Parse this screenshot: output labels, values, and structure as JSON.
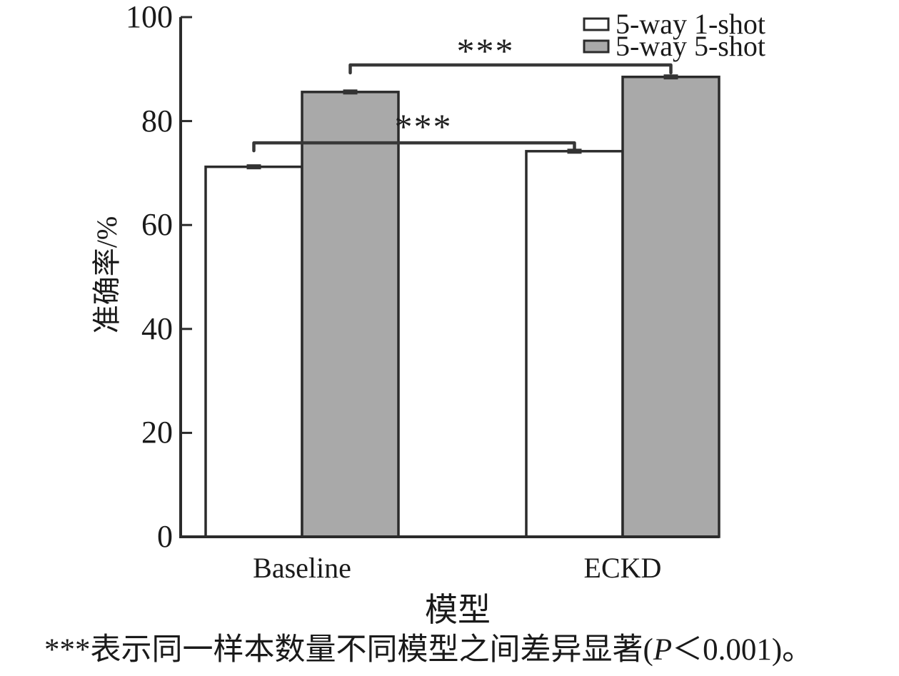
{
  "figure": {
    "background": "#ffffff",
    "text_color": "#1a1a1a"
  },
  "chart_data": {
    "type": "bar",
    "title": "",
    "xlabel": "模型",
    "ylabel": "准确率/%",
    "categories": [
      "Baseline",
      "ECKD"
    ],
    "series": [
      {
        "name": "5-way 1-shot",
        "values": [
          71.2,
          74.2
        ],
        "fill": "#ffffff",
        "edge": "#2b2b2b"
      },
      {
        "name": "5-way 5-shot",
        "values": [
          85.6,
          88.5
        ],
        "fill": "#a9a9a9",
        "edge": "#2b2b2b"
      }
    ],
    "error": [
      [
        0.4,
        0.4
      ],
      [
        0.4,
        0.4
      ]
    ],
    "ylim": [
      0,
      100
    ],
    "yticks": [
      0,
      20,
      40,
      60,
      80,
      100
    ],
    "grid": false,
    "legend_position": "top-right",
    "axis_color": "#2b2b2b",
    "error_color": "#333333",
    "bracket_color": "#383838",
    "annotations": [
      {
        "label": "***",
        "series": "5-way 1-shot",
        "between": [
          "Baseline",
          "ECKD"
        ],
        "height_value": 75.8
      },
      {
        "label": "***",
        "series": "5-way 5-shot",
        "between": [
          "Baseline",
          "ECKD"
        ],
        "height_value": 90.8
      }
    ]
  },
  "caption": {
    "prefix": "***表示同一样本数量不同模型之间差异显著(",
    "italic": "P",
    "suffix": "＜0.001)。"
  }
}
